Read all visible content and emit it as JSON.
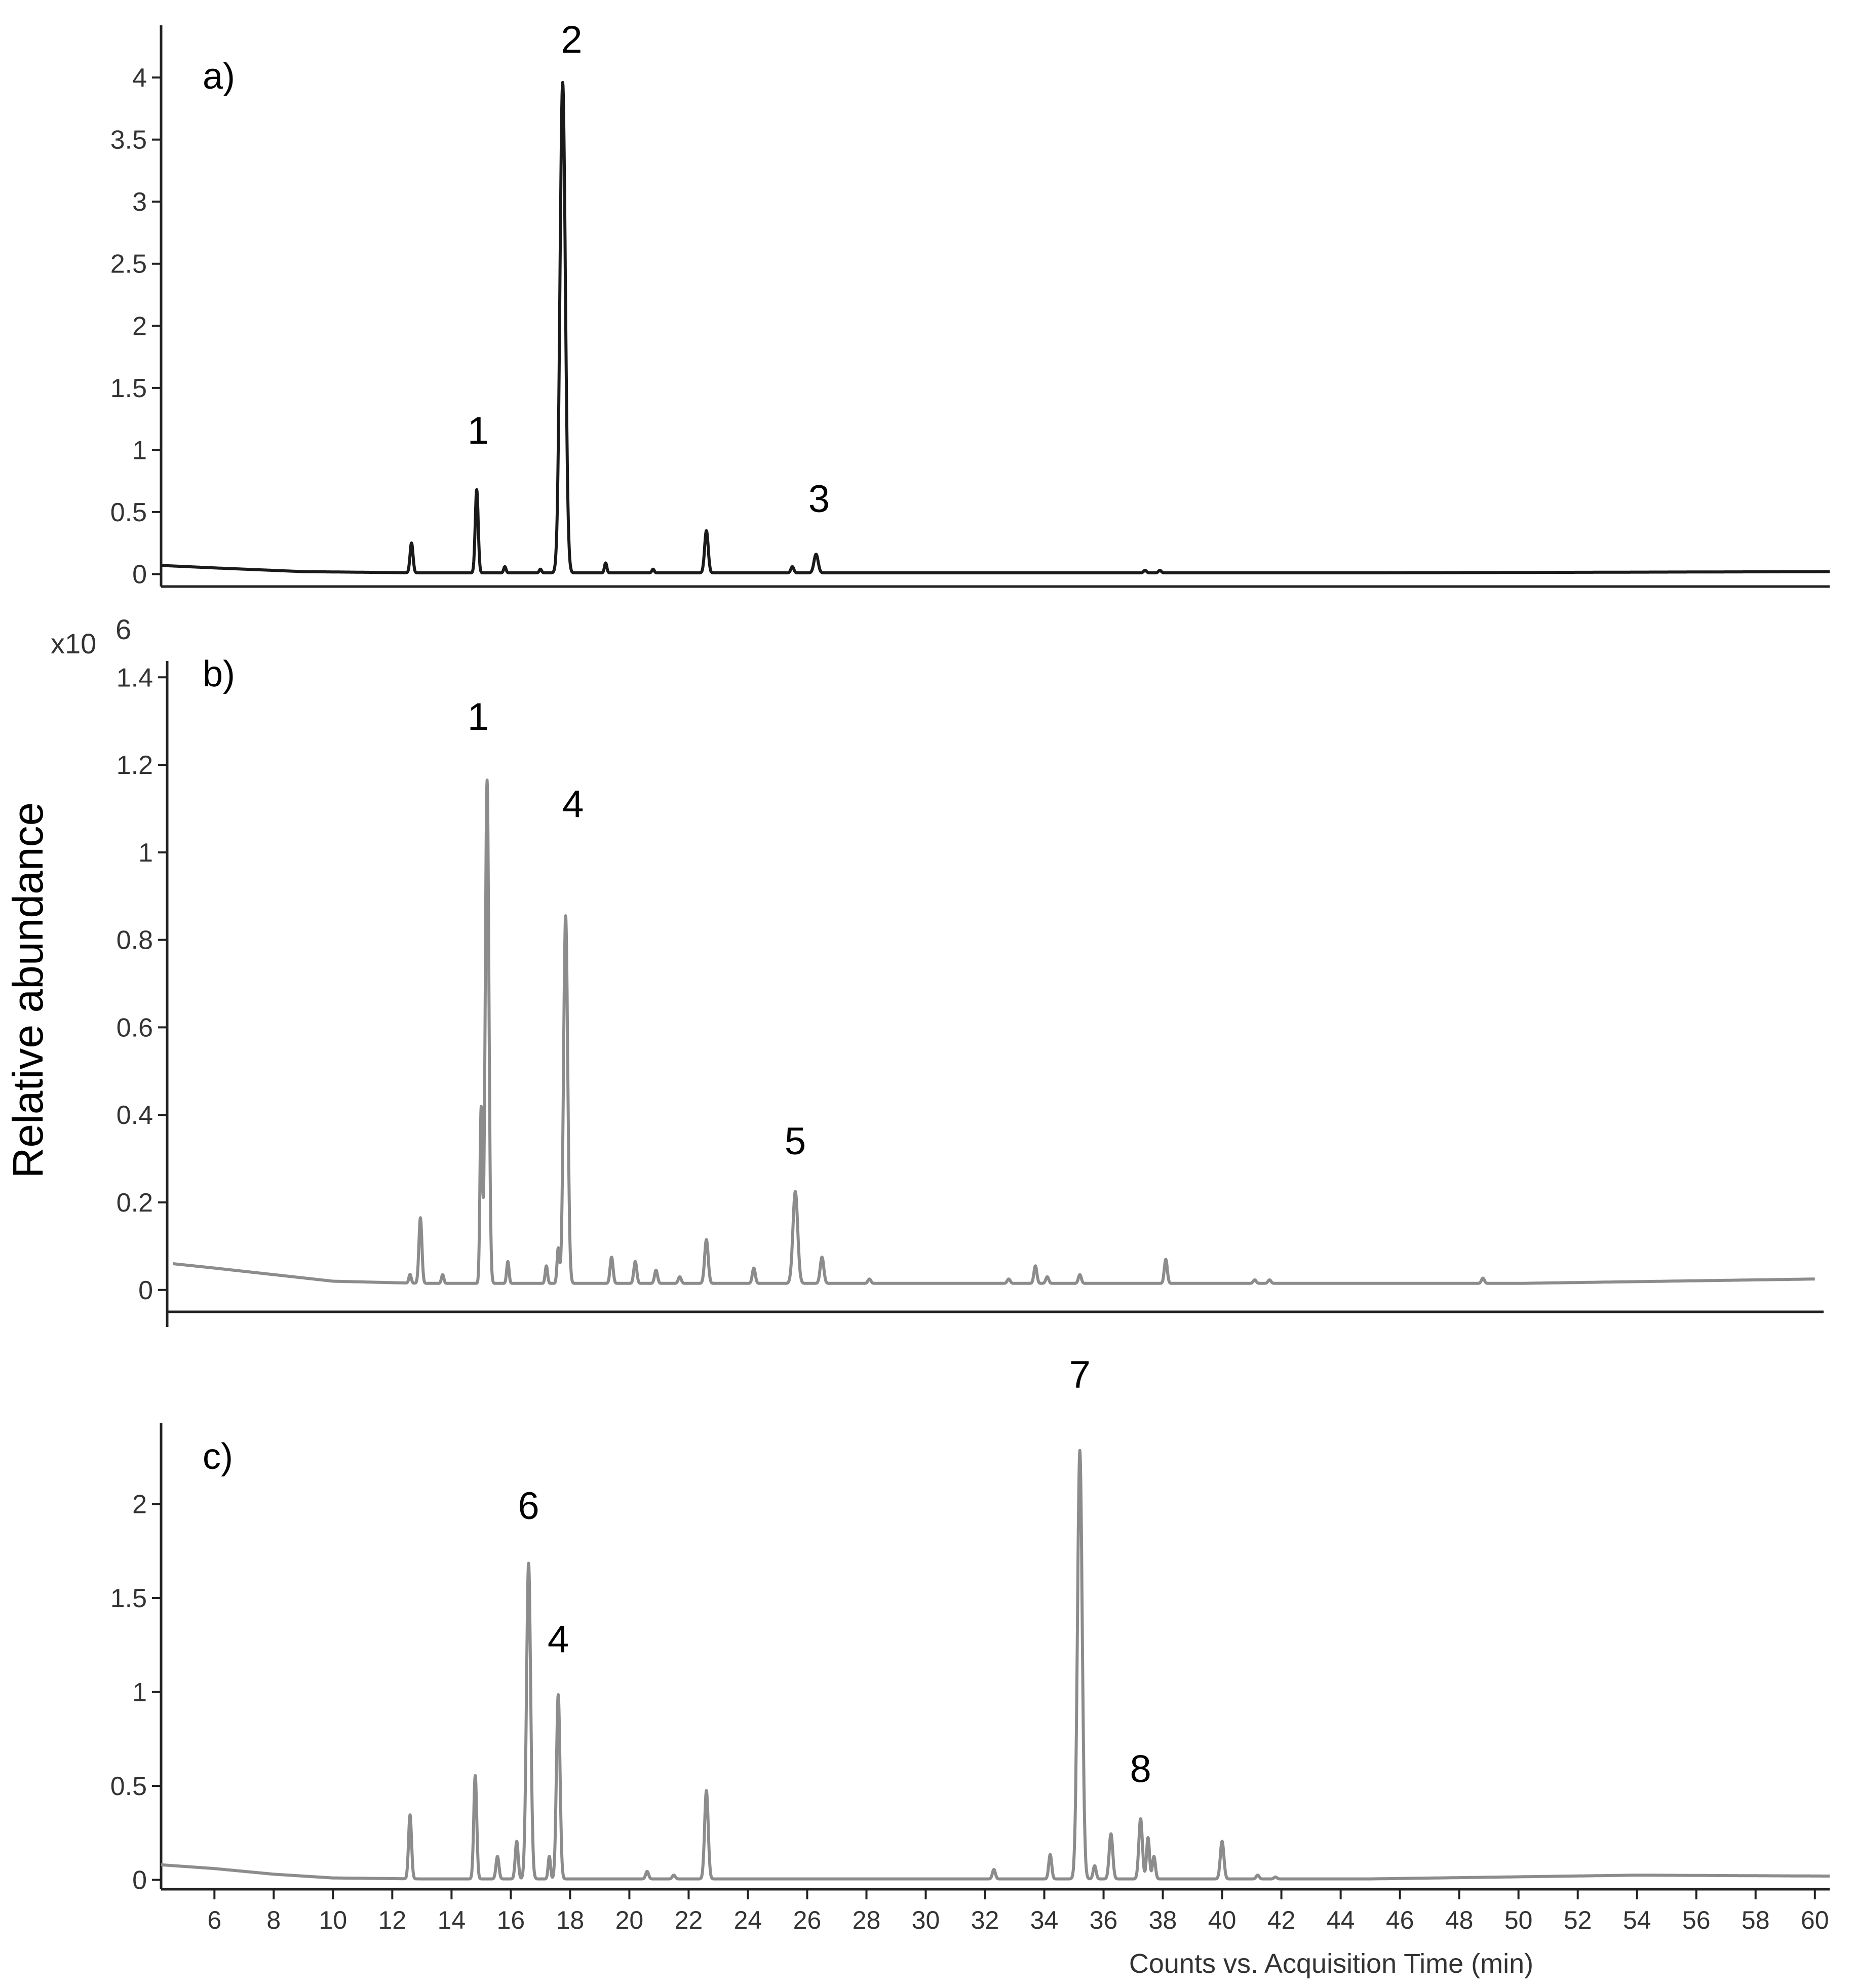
{
  "chart_data": {
    "type": "line",
    "ylabel": "Relative abundance",
    "xlabel": "Counts vs. Acquisition Time (min)",
    "y_multiplier": "x10",
    "y_multiplier_exp": "6",
    "xlim": [
      4.2,
      60.5
    ],
    "xticks": [
      6,
      8,
      10,
      12,
      14,
      16,
      18,
      20,
      22,
      24,
      26,
      28,
      30,
      32,
      34,
      36,
      38,
      40,
      42,
      44,
      46,
      48,
      50,
      52,
      54,
      56,
      58,
      60
    ],
    "panels": [
      {
        "label": "a)",
        "line_color": "#1a1a1a",
        "ylim": [
          -0.1,
          4.4
        ],
        "yticks": [
          0,
          0.5,
          1,
          1.5,
          2,
          2.5,
          3,
          3.5,
          4
        ],
        "ytick_labels": [
          "0",
          "0.5",
          "1",
          "1.5",
          "2",
          "2.5",
          "3",
          "3.5",
          "4"
        ],
        "baseline": [
          [
            4.2,
            0.07
          ],
          [
            6,
            0.05
          ],
          [
            9,
            0.02
          ],
          [
            13,
            0.01
          ],
          [
            30,
            0.01
          ],
          [
            45,
            0.01
          ],
          [
            60.5,
            0.02
          ]
        ],
        "peaks": [
          {
            "t": 12.65,
            "h": 0.24,
            "w": 0.05
          },
          {
            "t": 14.85,
            "h": 0.67,
            "w": 0.05
          },
          {
            "t": 15.8,
            "h": 0.05,
            "w": 0.04
          },
          {
            "t": 17.0,
            "h": 0.03,
            "w": 0.04
          },
          {
            "t": 17.75,
            "h": 3.95,
            "w": 0.09
          },
          {
            "t": 19.2,
            "h": 0.08,
            "w": 0.04
          },
          {
            "t": 20.8,
            "h": 0.03,
            "w": 0.04
          },
          {
            "t": 22.6,
            "h": 0.34,
            "w": 0.06
          },
          {
            "t": 25.5,
            "h": 0.05,
            "w": 0.05
          },
          {
            "t": 26.3,
            "h": 0.15,
            "w": 0.07
          },
          {
            "t": 37.4,
            "h": 0.02,
            "w": 0.05
          },
          {
            "t": 37.9,
            "h": 0.02,
            "w": 0.05
          }
        ],
        "annotations": [
          {
            "text": "1",
            "t": 14.9,
            "y": 1.05
          },
          {
            "text": "2",
            "t": 18.05,
            "y": 4.2
          },
          {
            "text": "3",
            "t": 26.4,
            "y": 0.5
          }
        ]
      },
      {
        "label": "b)",
        "line_color": "#8c8c8c",
        "ylim": [
          -0.05,
          1.42
        ],
        "yticks": [
          0,
          0.2,
          0.4,
          0.6,
          0.8,
          1,
          1.2,
          1.4
        ],
        "ytick_labels": [
          "0",
          "0.2",
          "0.4",
          "0.6",
          "0.8",
          "1",
          "1.2",
          "1.4"
        ],
        "baseline": [
          [
            4.6,
            0.06
          ],
          [
            6,
            0.05
          ],
          [
            8,
            0.035
          ],
          [
            10,
            0.02
          ],
          [
            13,
            0.015
          ],
          [
            30,
            0.015
          ],
          [
            50,
            0.015
          ],
          [
            60,
            0.025
          ]
        ],
        "peaks": [
          {
            "t": 12.6,
            "h": 0.02,
            "w": 0.04
          },
          {
            "t": 12.95,
            "h": 0.15,
            "w": 0.05
          },
          {
            "t": 13.7,
            "h": 0.02,
            "w": 0.04
          },
          {
            "t": 15.0,
            "h": 0.4,
            "w": 0.04
          },
          {
            "t": 15.2,
            "h": 1.15,
            "w": 0.06
          },
          {
            "t": 15.9,
            "h": 0.05,
            "w": 0.04
          },
          {
            "t": 17.2,
            "h": 0.04,
            "w": 0.04
          },
          {
            "t": 17.6,
            "h": 0.08,
            "w": 0.04
          },
          {
            "t": 17.85,
            "h": 0.84,
            "w": 0.07
          },
          {
            "t": 19.4,
            "h": 0.06,
            "w": 0.05
          },
          {
            "t": 20.2,
            "h": 0.05,
            "w": 0.05
          },
          {
            "t": 20.9,
            "h": 0.03,
            "w": 0.05
          },
          {
            "t": 21.7,
            "h": 0.015,
            "w": 0.05
          },
          {
            "t": 22.6,
            "h": 0.1,
            "w": 0.06
          },
          {
            "t": 24.2,
            "h": 0.035,
            "w": 0.05
          },
          {
            "t": 25.6,
            "h": 0.21,
            "w": 0.08
          },
          {
            "t": 26.5,
            "h": 0.06,
            "w": 0.06
          },
          {
            "t": 28.1,
            "h": 0.01,
            "w": 0.05
          },
          {
            "t": 32.8,
            "h": 0.01,
            "w": 0.05
          },
          {
            "t": 33.7,
            "h": 0.04,
            "w": 0.05
          },
          {
            "t": 34.1,
            "h": 0.015,
            "w": 0.05
          },
          {
            "t": 35.2,
            "h": 0.02,
            "w": 0.05
          },
          {
            "t": 38.1,
            "h": 0.055,
            "w": 0.05
          },
          {
            "t": 41.1,
            "h": 0.008,
            "w": 0.05
          },
          {
            "t": 41.6,
            "h": 0.008,
            "w": 0.05
          },
          {
            "t": 48.8,
            "h": 0.012,
            "w": 0.05
          }
        ],
        "annotations": [
          {
            "text": "1",
            "t": 14.9,
            "y": 1.28
          },
          {
            "text": "4",
            "t": 18.1,
            "y": 1.08
          },
          {
            "text": "5",
            "t": 25.6,
            "y": 0.31
          }
        ]
      },
      {
        "label": "c)",
        "line_color": "#8c8c8c",
        "ylim": [
          -0.05,
          2.43
        ],
        "yticks": [
          0,
          0.5,
          1,
          1.5,
          2
        ],
        "ytick_labels": [
          "0",
          "0.5",
          "1",
          "1.5",
          "2"
        ],
        "baseline": [
          [
            4.2,
            0.08
          ],
          [
            6,
            0.06
          ],
          [
            8,
            0.03
          ],
          [
            10,
            0.01
          ],
          [
            13,
            0.005
          ],
          [
            30,
            0.005
          ],
          [
            45,
            0.005
          ],
          [
            54,
            0.025
          ],
          [
            60.5,
            0.02
          ]
        ],
        "peaks": [
          {
            "t": 12.6,
            "h": 0.34,
            "w": 0.05
          },
          {
            "t": 14.8,
            "h": 0.55,
            "w": 0.05
          },
          {
            "t": 15.55,
            "h": 0.12,
            "w": 0.05
          },
          {
            "t": 16.2,
            "h": 0.2,
            "w": 0.05
          },
          {
            "t": 16.6,
            "h": 1.68,
            "w": 0.07
          },
          {
            "t": 17.3,
            "h": 0.12,
            "w": 0.04
          },
          {
            "t": 17.6,
            "h": 0.98,
            "w": 0.06
          },
          {
            "t": 20.6,
            "h": 0.04,
            "w": 0.05
          },
          {
            "t": 21.5,
            "h": 0.02,
            "w": 0.05
          },
          {
            "t": 22.6,
            "h": 0.47,
            "w": 0.06
          },
          {
            "t": 32.3,
            "h": 0.05,
            "w": 0.05
          },
          {
            "t": 34.2,
            "h": 0.13,
            "w": 0.05
          },
          {
            "t": 35.2,
            "h": 2.28,
            "w": 0.08
          },
          {
            "t": 35.7,
            "h": 0.07,
            "w": 0.05
          },
          {
            "t": 36.25,
            "h": 0.24,
            "w": 0.06
          },
          {
            "t": 37.25,
            "h": 0.32,
            "w": 0.06
          },
          {
            "t": 37.5,
            "h": 0.22,
            "w": 0.05
          },
          {
            "t": 37.7,
            "h": 0.12,
            "w": 0.05
          },
          {
            "t": 40.0,
            "h": 0.2,
            "w": 0.06
          },
          {
            "t": 41.2,
            "h": 0.02,
            "w": 0.05
          },
          {
            "t": 41.8,
            "h": 0.01,
            "w": 0.05
          }
        ],
        "annotations": [
          {
            "text": "6",
            "t": 16.6,
            "y": 1.92
          },
          {
            "text": "4",
            "t": 17.6,
            "y": 1.21
          },
          {
            "text": "7",
            "t": 35.2,
            "y": 2.62
          },
          {
            "text": "8",
            "t": 37.25,
            "y": 0.52
          }
        ]
      }
    ]
  }
}
